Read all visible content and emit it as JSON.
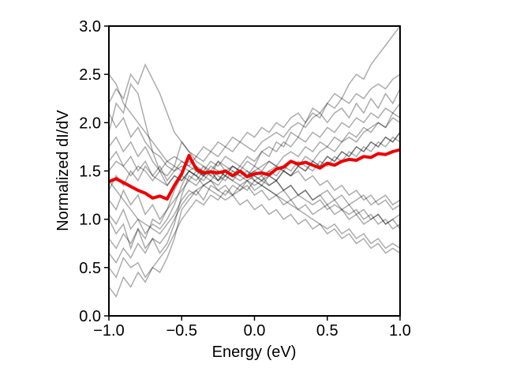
{
  "chart_data": {
    "type": "line",
    "title": "",
    "xlabel": "Energy (eV)",
    "ylabel": "Normalized dI/dV",
    "xlim": [
      -1.0,
      1.0
    ],
    "ylim": [
      0.0,
      3.0
    ],
    "grid": false,
    "x_ticks": [
      -1.0,
      -0.5,
      0.0,
      0.5,
      1.0
    ],
    "x_tick_labels": [
      "−1.0",
      "−0.5",
      "0.0",
      "0.5",
      "1.0"
    ],
    "y_ticks": [
      0.0,
      0.5,
      1.0,
      1.5,
      2.0,
      2.5,
      3.0
    ],
    "y_tick_labels": [
      "0.0",
      "0.5",
      "1.0",
      "1.5",
      "2.0",
      "2.5",
      "3.0"
    ],
    "colors": {
      "individual": "#000000",
      "average": "#ee0000"
    },
    "series": [
      {
        "role": "average",
        "color": "#ee0000",
        "x": [
          -1.0,
          -0.95,
          -0.9,
          -0.85,
          -0.8,
          -0.75,
          -0.7,
          -0.65,
          -0.6,
          -0.55,
          -0.5,
          -0.45,
          -0.4,
          -0.35,
          -0.3,
          -0.25,
          -0.2,
          -0.15,
          -0.1,
          -0.05,
          0.0,
          0.05,
          0.1,
          0.15,
          0.2,
          0.25,
          0.3,
          0.35,
          0.4,
          0.45,
          0.5,
          0.55,
          0.6,
          0.65,
          0.7,
          0.75,
          0.8,
          0.85,
          0.9,
          0.95,
          1.0
        ],
        "y": [
          1.39,
          1.42,
          1.38,
          1.34,
          1.3,
          1.27,
          1.22,
          1.24,
          1.21,
          1.35,
          1.47,
          1.66,
          1.52,
          1.48,
          1.49,
          1.48,
          1.5,
          1.45,
          1.5,
          1.44,
          1.47,
          1.48,
          1.46,
          1.52,
          1.54,
          1.6,
          1.57,
          1.59,
          1.56,
          1.53,
          1.58,
          1.56,
          1.6,
          1.62,
          1.61,
          1.65,
          1.64,
          1.68,
          1.67,
          1.7,
          1.72
        ]
      }
    ],
    "individual_x": [
      -1.0,
      -0.95,
      -0.9,
      -0.85,
      -0.8,
      -0.75,
      -0.7,
      -0.65,
      -0.6,
      -0.55,
      -0.5,
      -0.45,
      -0.4,
      -0.35,
      -0.3,
      -0.25,
      -0.2,
      -0.15,
      -0.1,
      -0.05,
      0.0,
      0.05,
      0.1,
      0.15,
      0.2,
      0.25,
      0.3,
      0.35,
      0.4,
      0.45,
      0.5,
      0.55,
      0.6,
      0.65,
      0.7,
      0.75,
      0.8,
      0.85,
      0.9,
      0.95,
      1.0
    ],
    "individual_series": [
      [
        1.0,
        0.85,
        0.95,
        0.7,
        0.9,
        0.8,
        1.0,
        0.95,
        1.1,
        1.3,
        1.45,
        1.4,
        1.5,
        1.45,
        1.5,
        1.4,
        1.5,
        1.45,
        1.4,
        1.45,
        1.5,
        1.45,
        1.5,
        1.55,
        1.5,
        1.6,
        1.55,
        1.65,
        1.6,
        1.7,
        1.75,
        1.7,
        1.8,
        1.85,
        1.8,
        1.9,
        1.95,
        2.0,
        1.95,
        2.1,
        2.05
      ],
      [
        2.5,
        2.4,
        2.2,
        2.1,
        2.0,
        1.9,
        1.8,
        1.7,
        1.6,
        1.65,
        1.6,
        1.55,
        1.5,
        1.45,
        1.5,
        1.4,
        1.45,
        1.4,
        1.35,
        1.4,
        1.3,
        1.35,
        1.3,
        1.25,
        1.3,
        1.2,
        1.25,
        1.2,
        1.15,
        1.2,
        1.1,
        1.15,
        1.1,
        1.05,
        1.1,
        1.0,
        1.05,
        0.95,
        1.0,
        0.9,
        0.95
      ],
      [
        0.5,
        0.4,
        0.6,
        0.5,
        0.55,
        0.4,
        0.5,
        0.45,
        0.6,
        0.8,
        1.1,
        1.2,
        1.3,
        1.2,
        1.35,
        1.3,
        1.25,
        1.35,
        1.3,
        1.4,
        1.35,
        1.4,
        1.45,
        1.4,
        1.5,
        1.45,
        1.55,
        1.5,
        1.6,
        1.55,
        1.65,
        1.6,
        1.7,
        1.65,
        1.75,
        1.7,
        1.8,
        1.75,
        1.85,
        1.8,
        1.9
      ],
      [
        1.9,
        2.2,
        2.1,
        2.4,
        2.3,
        2.0,
        1.7,
        1.5,
        1.6,
        1.55,
        1.8,
        1.7,
        1.6,
        1.55,
        1.45,
        1.6,
        1.5,
        1.55,
        1.5,
        1.6,
        1.55,
        1.7,
        1.65,
        1.8,
        1.75,
        1.9,
        1.85,
        2.0,
        2.1,
        2.05,
        2.2,
        2.3,
        2.25,
        2.4,
        2.5,
        2.45,
        2.6,
        2.7,
        2.8,
        2.9,
        3.0
      ],
      [
        1.2,
        1.1,
        1.3,
        1.15,
        1.25,
        1.05,
        1.15,
        1.0,
        1.1,
        1.2,
        1.3,
        1.4,
        1.35,
        1.45,
        1.4,
        1.5,
        1.45,
        1.55,
        1.5,
        1.45,
        1.55,
        1.5,
        1.6,
        1.55,
        1.5,
        1.45,
        1.5,
        1.4,
        1.45,
        1.35,
        1.4,
        1.3,
        1.35,
        1.25,
        1.3,
        1.2,
        1.25,
        1.15,
        1.2,
        1.1,
        1.15
      ],
      [
        1.6,
        1.7,
        1.55,
        1.65,
        1.5,
        1.6,
        1.45,
        1.55,
        1.4,
        1.5,
        1.55,
        1.5,
        1.45,
        1.55,
        1.5,
        1.6,
        1.55,
        1.5,
        1.45,
        1.5,
        1.4,
        1.45,
        1.35,
        1.4,
        1.3,
        1.35,
        1.25,
        1.3,
        1.2,
        1.25,
        1.15,
        1.2,
        1.1,
        1.15,
        1.05,
        1.1,
        1.0,
        1.05,
        0.95,
        1.0,
        0.9
      ],
      [
        0.8,
        0.7,
        0.85,
        0.75,
        0.9,
        0.7,
        0.8,
        0.65,
        0.75,
        0.95,
        1.25,
        1.45,
        1.4,
        1.5,
        1.45,
        1.4,
        1.5,
        1.45,
        1.55,
        1.5,
        1.45,
        1.4,
        1.5,
        1.45,
        1.55,
        1.5,
        1.6,
        1.55,
        1.5,
        1.6,
        1.55,
        1.65,
        1.6,
        1.7,
        1.65,
        1.75,
        1.7,
        1.8,
        1.75,
        1.85,
        1.8
      ],
      [
        2.1,
        1.95,
        2.05,
        1.85,
        1.95,
        1.8,
        1.7,
        1.65,
        1.55,
        1.5,
        1.6,
        1.55,
        1.65,
        1.6,
        1.7,
        1.65,
        1.75,
        1.7,
        1.8,
        1.75,
        1.7,
        1.8,
        1.85,
        1.9,
        1.85,
        1.95,
        2.0,
        1.95,
        2.05,
        2.1,
        2.0,
        2.1,
        2.15,
        2.05,
        2.2,
        2.1,
        2.25,
        2.15,
        2.3,
        2.2,
        2.35
      ],
      [
        1.4,
        1.3,
        1.2,
        1.1,
        1.0,
        0.95,
        0.9,
        0.85,
        0.95,
        1.05,
        1.2,
        1.3,
        1.25,
        1.35,
        1.3,
        1.25,
        1.2,
        1.25,
        1.15,
        1.2,
        1.1,
        1.15,
        1.05,
        1.1,
        1.0,
        1.05,
        0.95,
        1.0,
        0.9,
        0.95,
        0.85,
        0.9,
        0.8,
        0.85,
        0.75,
        0.8,
        0.7,
        0.75,
        0.65,
        0.7,
        0.65
      ],
      [
        1.75,
        1.85,
        1.7,
        1.8,
        1.65,
        1.75,
        1.6,
        1.5,
        1.45,
        1.55,
        1.5,
        1.6,
        1.55,
        1.5,
        1.6,
        1.55,
        1.65,
        1.6,
        1.55,
        1.65,
        1.6,
        1.7,
        1.75,
        1.7,
        1.8,
        1.75,
        1.85,
        1.8,
        1.9,
        1.85,
        1.95,
        1.9,
        2.0,
        1.95,
        2.05,
        2.0,
        2.1,
        2.05,
        2.15,
        2.1,
        2.2
      ],
      [
        0.3,
        0.2,
        0.4,
        0.3,
        0.45,
        0.35,
        0.5,
        0.6,
        0.7,
        0.85,
        1.0,
        1.1,
        1.2,
        1.15,
        1.25,
        1.2,
        1.3,
        1.25,
        1.35,
        1.3,
        1.4,
        1.35,
        1.45,
        1.4,
        1.5,
        1.45,
        1.55,
        1.5,
        1.6,
        1.55,
        1.65,
        1.6,
        1.7,
        1.65,
        1.75,
        1.7,
        1.8,
        1.75,
        1.85,
        1.8,
        1.9
      ],
      [
        1.3,
        1.45,
        1.35,
        1.5,
        1.4,
        1.55,
        1.45,
        1.4,
        1.35,
        1.45,
        1.4,
        1.5,
        1.45,
        1.35,
        1.4,
        1.3,
        1.35,
        1.25,
        1.3,
        1.35,
        1.25,
        1.3,
        1.2,
        1.25,
        1.15,
        1.2,
        1.1,
        1.15,
        1.05,
        1.1,
        1.15,
        1.05,
        1.1,
        1.0,
        1.05,
        0.95,
        1.0,
        1.05,
        0.95,
        1.0,
        1.05
      ],
      [
        2.2,
        2.35,
        2.25,
        2.5,
        2.4,
        2.6,
        2.45,
        2.3,
        2.1,
        1.9,
        1.8,
        1.7,
        1.65,
        1.75,
        1.7,
        1.8,
        1.75,
        1.85,
        1.8,
        1.9,
        1.85,
        1.95,
        1.9,
        2.0,
        1.95,
        2.05,
        2.1,
        2.0,
        2.15,
        2.1,
        2.2,
        2.15,
        2.25,
        2.2,
        2.3,
        2.25,
        2.35,
        2.4,
        2.35,
        2.45,
        2.5
      ],
      [
        1.05,
        0.95,
        1.1,
        0.9,
        1.0,
        0.85,
        0.95,
        0.9,
        1.0,
        1.15,
        1.35,
        1.5,
        1.45,
        1.4,
        1.5,
        1.45,
        1.4,
        1.5,
        1.45,
        1.4,
        1.45,
        1.4,
        1.35,
        1.4,
        1.3,
        1.35,
        1.25,
        1.3,
        1.2,
        1.25,
        1.3,
        1.2,
        1.25,
        1.15,
        1.2,
        1.25,
        1.15,
        1.2,
        1.25,
        1.15,
        1.2
      ],
      [
        1.5,
        1.6,
        1.55,
        1.45,
        1.55,
        1.5,
        1.4,
        1.5,
        1.35,
        1.45,
        1.4,
        1.5,
        1.55,
        1.45,
        1.55,
        1.5,
        1.45,
        1.55,
        1.5,
        1.45,
        1.5,
        1.55,
        1.6,
        1.55,
        1.65,
        1.7,
        1.65,
        1.75,
        1.7,
        1.8,
        1.75,
        1.85,
        1.8,
        1.9,
        1.85,
        1.95,
        1.9,
        2.0,
        1.95,
        2.05,
        2.0
      ],
      [
        0.65,
        0.55,
        0.7,
        0.6,
        0.75,
        0.65,
        0.8,
        0.75,
        0.85,
        1.0,
        1.15,
        1.25,
        1.3,
        1.35,
        1.4,
        1.35,
        1.45,
        1.4,
        1.5,
        1.45,
        1.4,
        1.35,
        1.3,
        1.25,
        1.2,
        1.15,
        1.1,
        1.05,
        1.0,
        0.95,
        0.9,
        0.95,
        0.85,
        0.9,
        0.8,
        0.85,
        0.75,
        0.8,
        0.7,
        0.75,
        0.7
      ]
    ]
  }
}
